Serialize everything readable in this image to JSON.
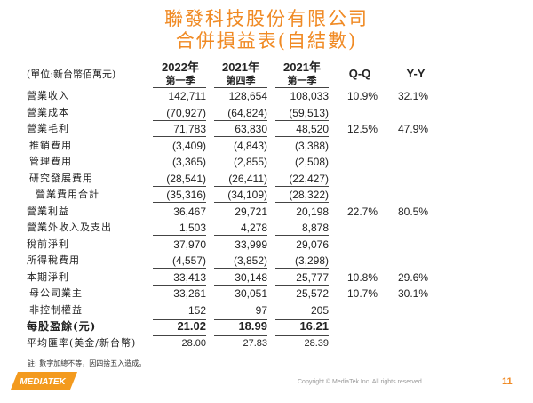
{
  "title": {
    "line1": "聯發科技股份有限公司",
    "line2": "合併損益表(自結數)"
  },
  "unit_label": "(單位:新台幣佰萬元)",
  "columns": [
    {
      "year": "2022年",
      "quarter": "第一季"
    },
    {
      "year": "2021年",
      "quarter": "第四季"
    },
    {
      "year": "2021年",
      "quarter": "第一季"
    }
  ],
  "qq_label": "Q-Q",
  "yy_label": "Y-Y",
  "rows": [
    {
      "label": "營業收入",
      "values": [
        "142,711",
        "128,654",
        "108,033"
      ],
      "qq": "10.9%",
      "yy": "32.1%"
    },
    {
      "label": "營業成本",
      "values": [
        "(70,927)",
        "(64,824)",
        "(59,513)"
      ],
      "qq": "",
      "yy": ""
    },
    {
      "label": "營業毛利",
      "values": [
        "71,783",
        "63,830",
        "48,520"
      ],
      "qq": "12.5%",
      "yy": "47.9%"
    },
    {
      "label": "推銷費用",
      "values": [
        "(3,409)",
        "(4,843)",
        "(3,388)"
      ],
      "qq": "",
      "yy": ""
    },
    {
      "label": "管理費用",
      "values": [
        "(3,365)",
        "(2,855)",
        "(2,508)"
      ],
      "qq": "",
      "yy": ""
    },
    {
      "label": "研究發展費用",
      "values": [
        "(28,541)",
        "(26,411)",
        "(22,427)"
      ],
      "qq": "",
      "yy": ""
    },
    {
      "label": "營業費用合計",
      "values": [
        "(35,316)",
        "(34,109)",
        "(28,322)"
      ],
      "qq": "",
      "yy": ""
    },
    {
      "label": "營業利益",
      "values": [
        "36,467",
        "29,721",
        "20,198"
      ],
      "qq": "22.7%",
      "yy": "80.5%"
    },
    {
      "label": "營業外收入及支出",
      "values": [
        "1,503",
        "4,278",
        "8,878"
      ],
      "qq": "",
      "yy": ""
    },
    {
      "label": "稅前淨利",
      "values": [
        "37,970",
        "33,999",
        "29,076"
      ],
      "qq": "",
      "yy": ""
    },
    {
      "label": "所得稅費用",
      "values": [
        "(4,557)",
        "(3,852)",
        "(3,298)"
      ],
      "qq": "",
      "yy": ""
    },
    {
      "label": "本期淨利",
      "values": [
        "33,413",
        "30,148",
        "25,777"
      ],
      "qq": "10.8%",
      "yy": "29.6%"
    },
    {
      "label": "母公司業主",
      "values": [
        "33,261",
        "30,051",
        "25,572"
      ],
      "qq": "10.7%",
      "yy": "30.1%"
    },
    {
      "label": "非控制權益",
      "values": [
        "152",
        "97",
        "205"
      ],
      "qq": "",
      "yy": ""
    },
    {
      "label": "每股盈餘(元)",
      "values": [
        "21.02",
        "18.99",
        "16.21"
      ],
      "qq": "",
      "yy": ""
    },
    {
      "label": "平均匯率(美金/新台幣)",
      "values": [
        "28.00",
        "27.83",
        "28.39"
      ],
      "qq": "",
      "yy": ""
    }
  ],
  "note": "註: 數字加總不等，因四捨五入造成。",
  "logo_text": "MEDIATEK",
  "copyright": "Copyright © MediaTek Inc. All rights reserved.",
  "page_number": "11",
  "brand_color": "#f08a24"
}
